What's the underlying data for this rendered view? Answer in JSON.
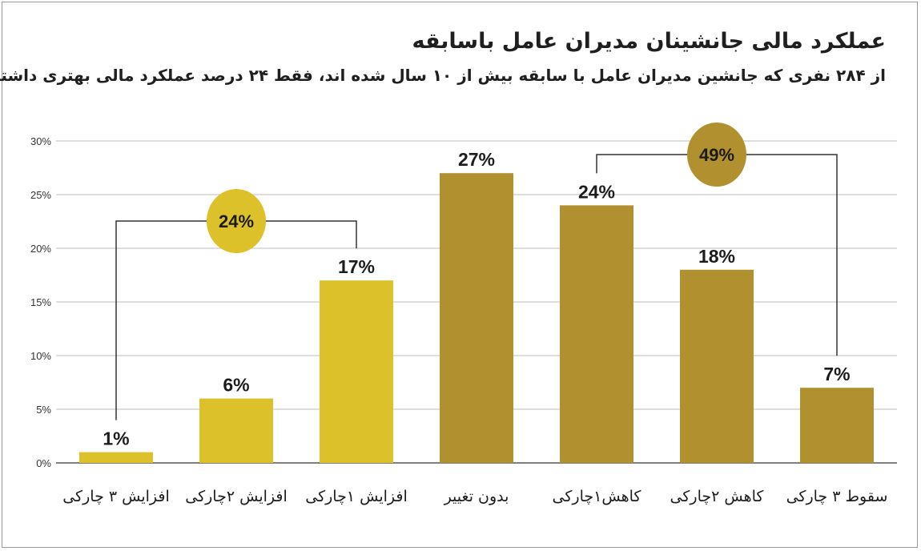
{
  "header": {
    "title": "عملکرد مالی جانشینان مدیران عامل باسابقه",
    "subtitle": "از ۲۸۴ نفری که جانشین مدیران عامل با سابقه بیش از ۱۰ سال شده اند، فقط ۲۴ درصد عملکرد مالی بهتری داشته اند."
  },
  "chart_data": {
    "type": "bar",
    "title": "عملکرد مالی جانشینان مدیران عامل باسابقه",
    "categories": [
      "افزایش ۳ چارکی",
      "افزایش ۲چارکی",
      "افزایش ۱چارکی",
      "بدون تغییر",
      "کاهش۱چارکی",
      "کاهش ۲چارکی",
      "سقوط ۳ چارکی"
    ],
    "values": [
      1,
      6,
      17,
      27,
      24,
      18,
      7
    ],
    "data_labels": [
      "1%",
      "6%",
      "17%",
      "27%",
      "24%",
      "18%",
      "7%"
    ],
    "y_ticks": [
      "0%",
      "5%",
      "10%",
      "15%",
      "20%",
      "25%",
      "30%"
    ],
    "ylim": [
      0,
      30
    ],
    "grid": true,
    "legend": "none",
    "colors": {
      "increase": "#dcc12a",
      "neutral_decrease": "#b0902f",
      "grid": "#bdbdbd",
      "axis": "#555555"
    },
    "groups": [
      {
        "label": "24%",
        "from": 0,
        "to": 2,
        "color": "#dcc12a"
      },
      {
        "label": "49%",
        "from": 4,
        "to": 6,
        "color": "#b0902f"
      }
    ]
  }
}
